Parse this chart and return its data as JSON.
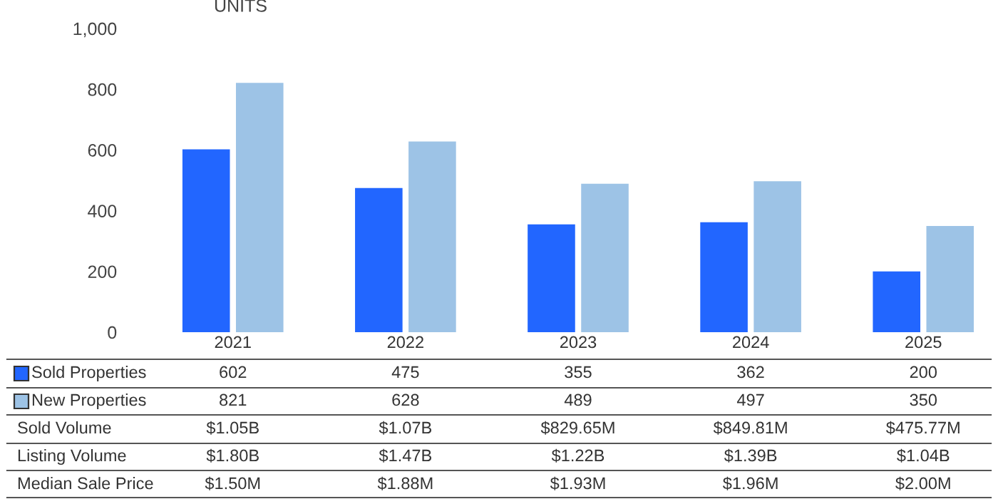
{
  "chart_data": {
    "type": "bar",
    "ylabel": "UNITS",
    "categories": [
      "2021",
      "2022",
      "2023",
      "2024",
      "2025"
    ],
    "series": [
      {
        "name": "Sold Properties",
        "color": "#2266ff",
        "values": [
          602,
          475,
          355,
          362,
          200
        ]
      },
      {
        "name": "New Properties",
        "color": "#9dc3e6",
        "values": [
          821,
          628,
          489,
          497,
          350
        ]
      }
    ],
    "ylim": [
      0,
      1000
    ],
    "yticks": [
      0,
      200,
      400,
      600,
      800,
      {
        "value": 1000,
        "label": "1,000"
      }
    ],
    "grid": false,
    "legend": "bottom",
    "data_labels": true,
    "annotations": [
      "Sold Volume",
      "$1.05B",
      "$1.07B",
      "$829.65M",
      "$849.81M",
      "$475.77M",
      "Listing Volume",
      "$1.80B",
      "$1.47B",
      "$1.22B",
      "$1.39B",
      "$1.04B",
      "Median Sale Price",
      "$1.50M",
      "$1.88M",
      "$1.93M",
      "$1.96M",
      "$2.00M"
    ]
  }
}
